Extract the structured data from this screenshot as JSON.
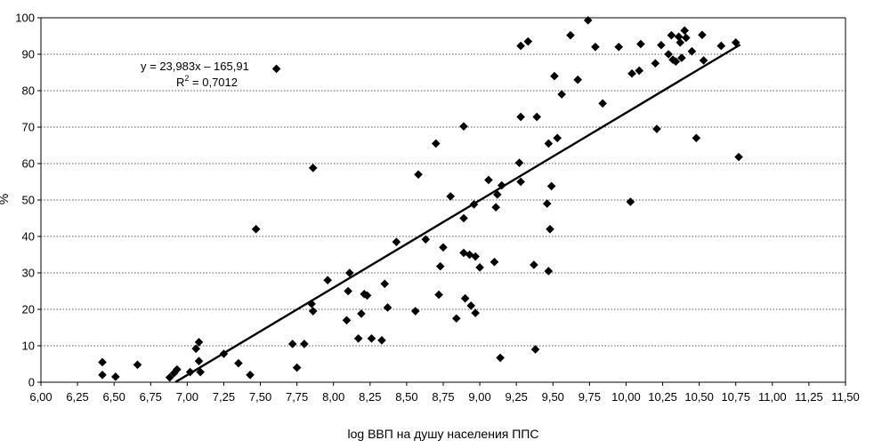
{
  "chart_data": {
    "type": "scatter",
    "xlabel": "log ВВП на душу населения ППС",
    "ylabel": "%",
    "xlim": [
      6.0,
      11.5
    ],
    "ylim": [
      0,
      100
    ],
    "xticks": [
      "6,00",
      "6,25",
      "6,50",
      "6,75",
      "7,00",
      "7,25",
      "7,50",
      "7,75",
      "8,00",
      "8,25",
      "8,50",
      "8,75",
      "9,00",
      "9,25",
      "9,50",
      "9,75",
      "10,00",
      "10,25",
      "10,50",
      "10,75",
      "11,00",
      "11,25",
      "11,50"
    ],
    "yticks": [
      "0",
      "10",
      "20",
      "30",
      "40",
      "50",
      "60",
      "70",
      "80",
      "90",
      "100"
    ],
    "grid": "horizontal dotted",
    "trendline": {
      "slope": 23.983,
      "intercept": -165.91,
      "x_range": [
        6.92,
        10.78
      ]
    },
    "equation_text": "y = 23,983x – 165,91",
    "r2_label": "R",
    "r2_sup": "2",
    "r2_value": " = 0,7012",
    "points": [
      [
        6.42,
        5.5
      ],
      [
        6.42,
        2
      ],
      [
        6.51,
        1.5
      ],
      [
        6.66,
        4.8
      ],
      [
        6.88,
        1.3
      ],
      [
        6.91,
        2.5
      ],
      [
        6.93,
        3.5
      ],
      [
        7.02,
        2.8
      ],
      [
        7.06,
        9.2
      ],
      [
        7.08,
        11
      ],
      [
        7.08,
        5.8
      ],
      [
        7.09,
        2.8
      ],
      [
        7.25,
        7.8
      ],
      [
        7.35,
        5.2
      ],
      [
        7.43,
        2
      ],
      [
        7.47,
        42
      ],
      [
        7.61,
        86
      ],
      [
        7.72,
        10.5
      ],
      [
        7.75,
        4
      ],
      [
        7.8,
        10.5
      ],
      [
        7.85,
        21.5
      ],
      [
        7.86,
        19.5
      ],
      [
        7.86,
        58.8
      ],
      [
        7.96,
        28
      ],
      [
        8.09,
        17
      ],
      [
        8.1,
        25
      ],
      [
        8.11,
        30
      ],
      [
        8.17,
        12
      ],
      [
        8.19,
        18.8
      ],
      [
        8.21,
        24.2
      ],
      [
        8.23,
        23.8
      ],
      [
        8.26,
        12
      ],
      [
        8.33,
        11.5
      ],
      [
        8.35,
        27
      ],
      [
        8.37,
        20.5
      ],
      [
        8.43,
        38.5
      ],
      [
        8.56,
        19.5
      ],
      [
        8.58,
        57
      ],
      [
        8.63,
        39.2
      ],
      [
        8.7,
        65.5
      ],
      [
        8.72,
        24
      ],
      [
        8.73,
        31.8
      ],
      [
        8.75,
        37
      ],
      [
        8.8,
        51
      ],
      [
        8.84,
        17.5
      ],
      [
        8.89,
        70.2
      ],
      [
        8.89,
        45
      ],
      [
        8.89,
        35.5
      ],
      [
        8.9,
        23
      ],
      [
        8.93,
        35
      ],
      [
        8.94,
        21
      ],
      [
        8.96,
        48.8
      ],
      [
        8.97,
        34.5
      ],
      [
        8.97,
        19
      ],
      [
        9.0,
        31.5
      ],
      [
        9.06,
        55.5
      ],
      [
        9.1,
        33
      ],
      [
        9.11,
        48
      ],
      [
        9.12,
        51.5
      ],
      [
        9.14,
        6.7
      ],
      [
        9.15,
        54
      ],
      [
        9.27,
        60.2
      ],
      [
        9.28,
        92.3
      ],
      [
        9.28,
        72.8
      ],
      [
        9.28,
        55
      ],
      [
        9.33,
        93.5
      ],
      [
        9.37,
        32.2
      ],
      [
        9.38,
        9
      ],
      [
        9.39,
        72.8
      ],
      [
        9.46,
        49
      ],
      [
        9.47,
        65.5
      ],
      [
        9.47,
        30.5
      ],
      [
        9.48,
        42
      ],
      [
        9.49,
        53.8
      ],
      [
        9.51,
        84
      ],
      [
        9.53,
        67
      ],
      [
        9.56,
        79
      ],
      [
        9.62,
        95.2
      ],
      [
        9.67,
        83
      ],
      [
        9.74,
        99.3
      ],
      [
        9.79,
        92
      ],
      [
        9.84,
        76.5
      ],
      [
        9.95,
        92
      ],
      [
        10.03,
        49.5
      ],
      [
        10.04,
        84.7
      ],
      [
        10.09,
        85.5
      ],
      [
        10.1,
        92.8
      ],
      [
        10.2,
        87.5
      ],
      [
        10.21,
        69.5
      ],
      [
        10.24,
        92.5
      ],
      [
        10.29,
        90
      ],
      [
        10.31,
        95.2
      ],
      [
        10.32,
        88.5
      ],
      [
        10.34,
        88
      ],
      [
        10.36,
        94.8
      ],
      [
        10.37,
        93.2
      ],
      [
        10.38,
        89
      ],
      [
        10.4,
        96.5
      ],
      [
        10.41,
        94.5
      ],
      [
        10.45,
        90.8
      ],
      [
        10.48,
        67
      ],
      [
        10.52,
        95.3
      ],
      [
        10.53,
        88.3
      ],
      [
        10.65,
        92.3
      ],
      [
        10.75,
        93.2
      ],
      [
        10.77,
        61.8
      ]
    ]
  }
}
